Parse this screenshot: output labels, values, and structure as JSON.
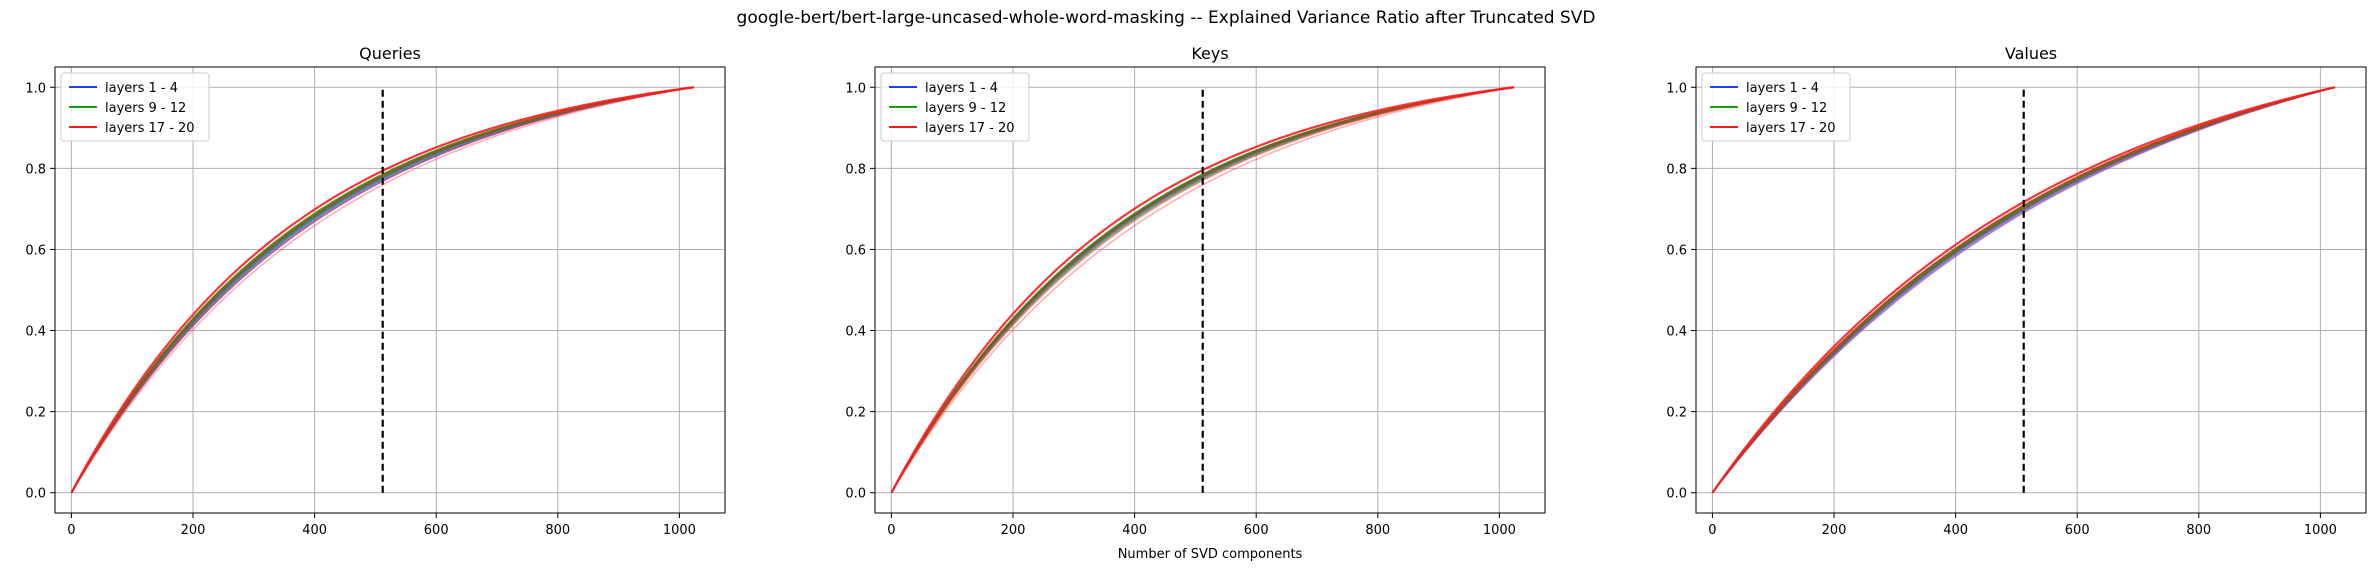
{
  "figure": {
    "suptitle": "google-bert/bert-large-uncased-whole-word-masking -- Explained Variance Ratio after Truncated SVD"
  },
  "colors": {
    "blue": "#1f3fff",
    "green": "#1a9c1a",
    "red": "#ff1a1a",
    "grid": "#b0b0b0",
    "threshold": "#000000"
  },
  "chart_data": [
    {
      "type": "line",
      "title": "Queries",
      "xlabel": "",
      "ylabel": "",
      "xlim": [
        -27,
        1075
      ],
      "ylim": [
        -0.05,
        1.05
      ],
      "xticks": [
        0,
        200,
        400,
        600,
        800,
        1000
      ],
      "yticks": [
        0.0,
        0.2,
        0.4,
        0.6,
        0.8,
        1.0
      ],
      "grid": true,
      "legend_position": "top-left",
      "threshold_x": 512,
      "threshold_y": [
        0,
        1
      ],
      "x_max": 1024,
      "legend": [
        "layers 1 - 4",
        "layers 9 - 12",
        "layers 17 - 20"
      ],
      "series": [
        {
          "name": "layers 1 - 4",
          "color_key": "blue",
          "shape": [
            2.4,
            2.45,
            2.5,
            2.55
          ]
        },
        {
          "name": "layers 9 - 12",
          "color_key": "green",
          "shape": [
            2.48,
            2.52,
            2.56,
            2.6
          ]
        },
        {
          "name": "layers 17 - 20",
          "color_key": "red",
          "shape": [
            2.3,
            2.4,
            2.55,
            2.7
          ]
        }
      ]
    },
    {
      "type": "line",
      "title": "Keys",
      "xlabel": "Number of SVD components",
      "ylabel": "",
      "xlim": [
        -27,
        1075
      ],
      "ylim": [
        -0.05,
        1.05
      ],
      "xticks": [
        0,
        200,
        400,
        600,
        800,
        1000
      ],
      "yticks": [
        0.0,
        0.2,
        0.4,
        0.6,
        0.8,
        1.0
      ],
      "grid": true,
      "legend_position": "top-left",
      "threshold_x": 512,
      "threshold_y": [
        0,
        1
      ],
      "x_max": 1024,
      "legend": [
        "layers 1 - 4",
        "layers 9 - 12",
        "layers 17 - 20"
      ],
      "series": [
        {
          "name": "layers 1 - 4",
          "color_key": "blue",
          "shape": [
            2.48,
            2.52,
            2.55,
            2.58
          ]
        },
        {
          "name": "layers 9 - 12",
          "color_key": "green",
          "shape": [
            2.46,
            2.52,
            2.56,
            2.6
          ]
        },
        {
          "name": "layers 17 - 20",
          "color_key": "red",
          "shape": [
            2.3,
            2.42,
            2.55,
            2.72
          ]
        }
      ]
    },
    {
      "type": "line",
      "title": "Values",
      "xlabel": "",
      "ylabel": "",
      "xlim": [
        -27,
        1075
      ],
      "ylim": [
        -0.05,
        1.05
      ],
      "xticks": [
        0,
        200,
        400,
        600,
        800,
        1000
      ],
      "yticks": [
        0.0,
        0.2,
        0.4,
        0.6,
        0.8,
        1.0
      ],
      "grid": true,
      "legend_position": "top-left",
      "threshold_x": 512,
      "threshold_y": [
        0,
        1
      ],
      "x_max": 1024,
      "legend": [
        "layers 1 - 4",
        "layers 9 - 12",
        "layers 17 - 20"
      ],
      "series": [
        {
          "name": "layers 1 - 4",
          "color_key": "blue",
          "shape": [
            1.62,
            1.66,
            1.7,
            1.74
          ]
        },
        {
          "name": "layers 9 - 12",
          "color_key": "green",
          "shape": [
            1.68,
            1.71,
            1.74,
            1.77
          ]
        },
        {
          "name": "layers 17 - 20",
          "color_key": "red",
          "shape": [
            1.6,
            1.7,
            1.78,
            1.86
          ]
        }
      ]
    }
  ]
}
